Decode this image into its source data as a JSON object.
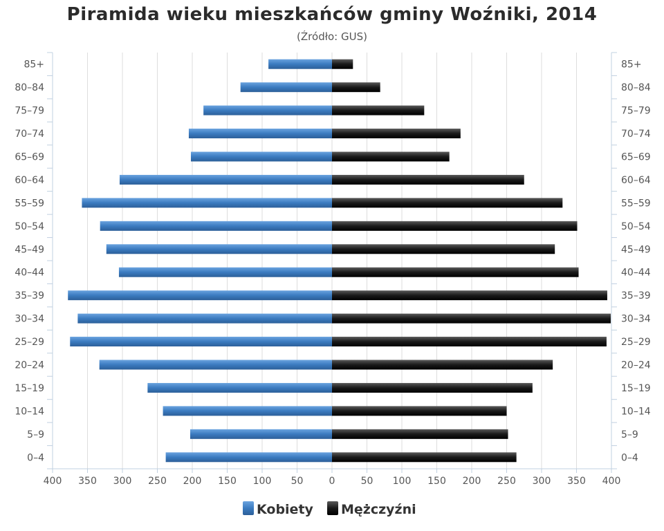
{
  "chart_data": {
    "type": "bar",
    "orientation": "horizontal-pyramid",
    "title": "Piramida wieku mieszkańców gminy Woźniki, 2014",
    "subtitle": "(Źródło: GUS)",
    "categories": [
      "85+",
      "80–84",
      "75–79",
      "70–74",
      "65–69",
      "60–64",
      "55–59",
      "50–54",
      "45–49",
      "40–44",
      "35–39",
      "30–34",
      "25–29",
      "20–24",
      "15–19",
      "10–14",
      "5–9",
      "0–4"
    ],
    "series": [
      {
        "name": "Kobiety",
        "side": "left",
        "color": "#3b7bc0",
        "values": [
          91,
          131,
          184,
          205,
          202,
          304,
          358,
          332,
          323,
          305,
          378,
          364,
          375,
          333,
          264,
          242,
          203,
          238
        ]
      },
      {
        "name": "Mężczyźni",
        "side": "right",
        "color": "#1a1a1a",
        "values": [
          30,
          69,
          132,
          184,
          168,
          275,
          330,
          351,
          319,
          353,
          394,
          399,
          393,
          316,
          287,
          250,
          252,
          264
        ]
      }
    ],
    "x_ticks": [
      "400",
      "350",
      "300",
      "250",
      "200",
      "150",
      "100",
      "50",
      "0",
      "50",
      "100",
      "150",
      "200",
      "250",
      "300",
      "350",
      "400"
    ],
    "xlim": [
      0,
      400
    ],
    "grid": true,
    "legend_position": "bottom-center"
  }
}
